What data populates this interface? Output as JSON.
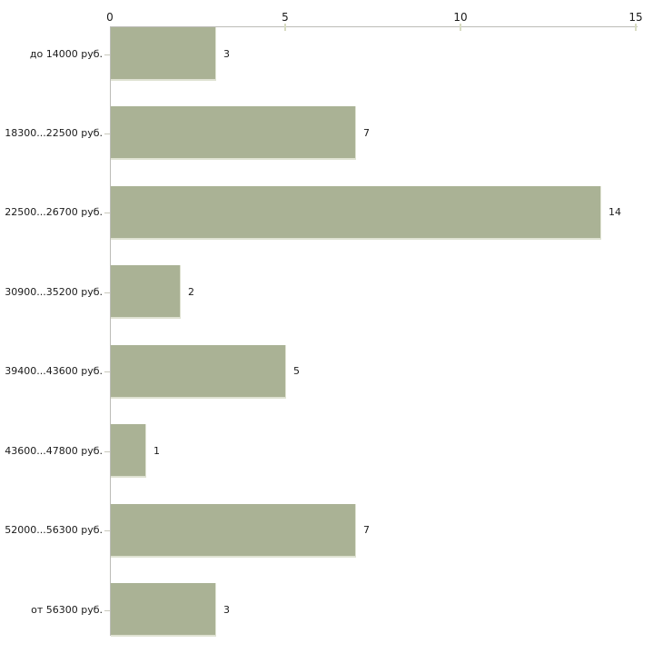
{
  "chart_data": {
    "type": "bar",
    "orientation": "horizontal",
    "title": "",
    "xlabel": "",
    "ylabel": "",
    "categories": [
      "до 14000 руб.",
      "18300...22500 руб.",
      "22500...26700 руб.",
      "30900...35200 руб.",
      "39400...43600 руб.",
      "43600...47800 руб.",
      "52000...56300 руб.",
      "от 56300 руб."
    ],
    "values": [
      3,
      7,
      14,
      2,
      5,
      1,
      7,
      3
    ],
    "value_labels": [
      "3",
      "7",
      "14",
      "2",
      "5",
      "1",
      "7",
      "3"
    ],
    "xlim": [
      0,
      15
    ],
    "x_ticks": [
      0,
      5,
      10,
      15
    ],
    "x_tick_labels": [
      "0",
      "5",
      "10",
      "15"
    ],
    "axis_position": "top",
    "grid": false,
    "legend": false,
    "colors": {
      "bar_fill": "#aab295",
      "bar_edge_light": "#dfe2d2",
      "axis_line": "#bcbcb7",
      "tick_mark": "#d8dcc2",
      "category_tick": "#c9c9bd",
      "text": "#1a1a1a",
      "background": "#ffffff"
    }
  }
}
